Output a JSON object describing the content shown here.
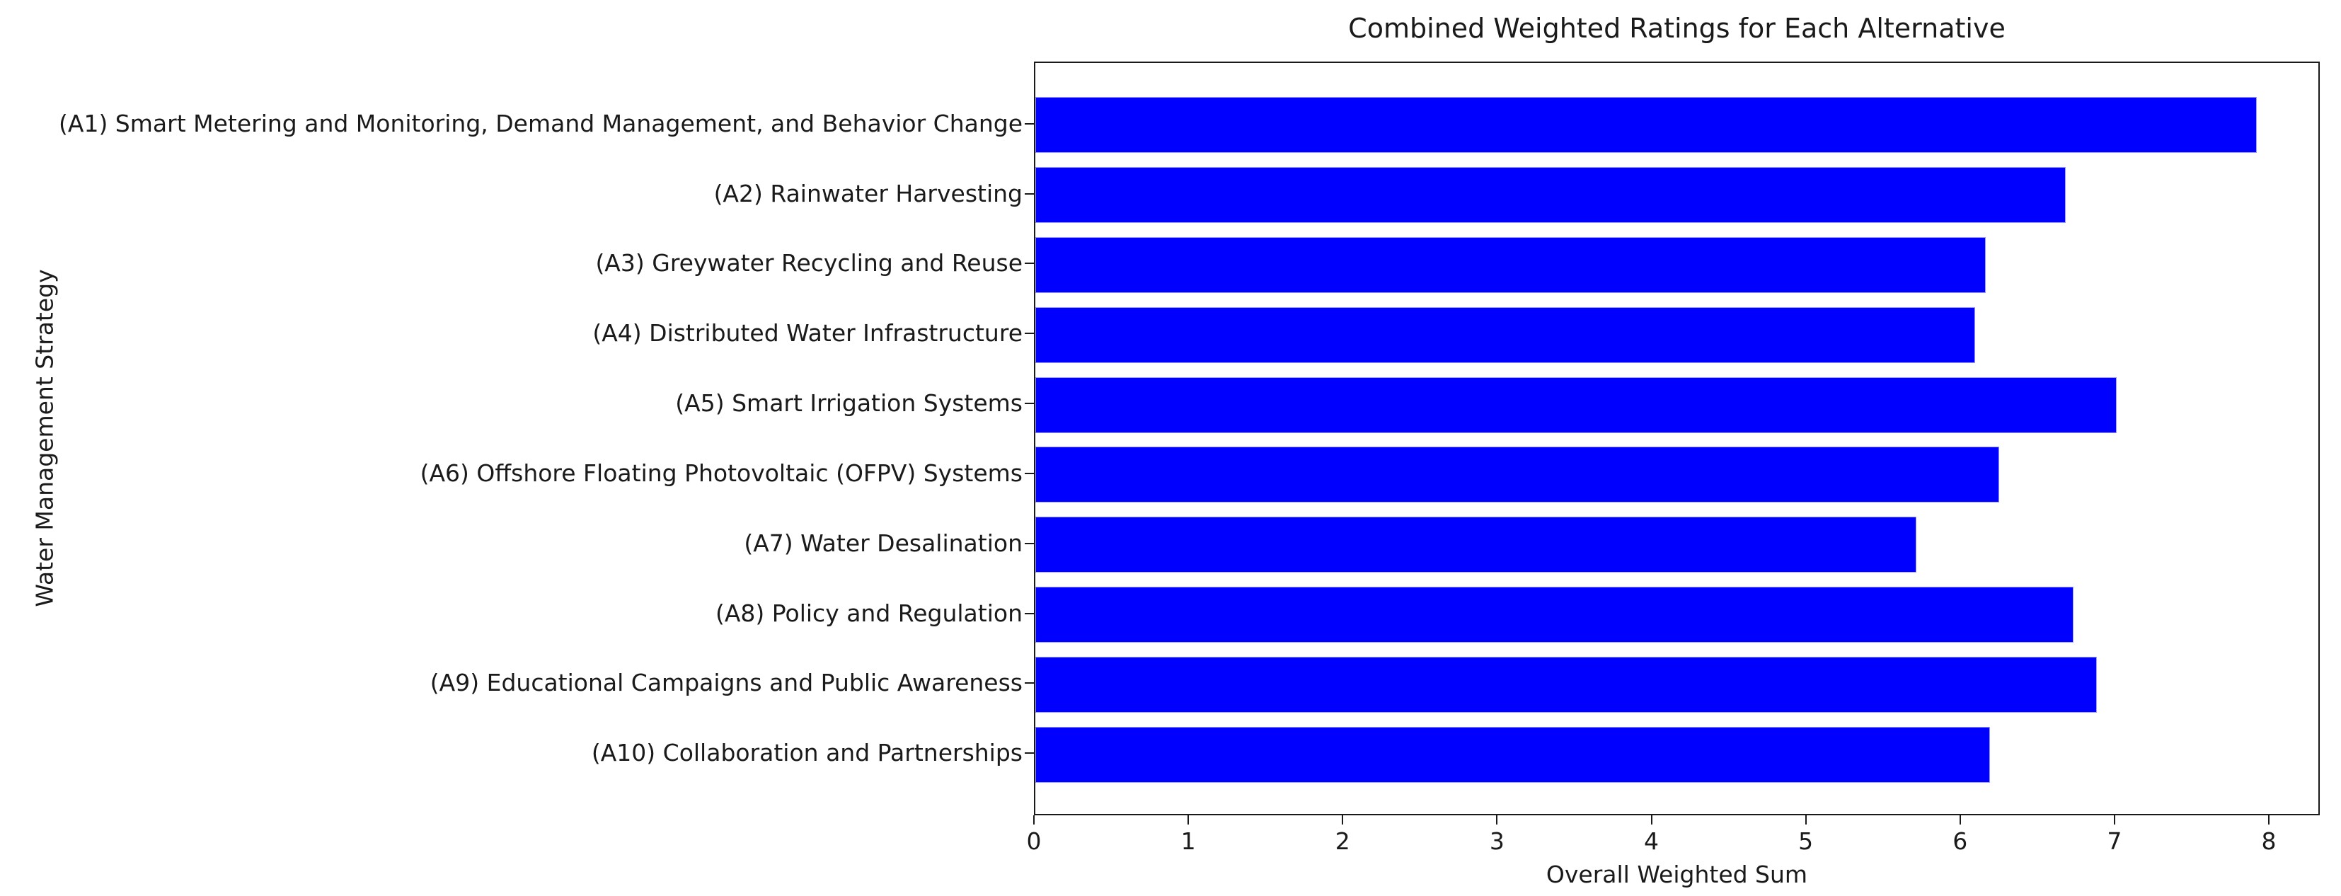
{
  "chart_data": {
    "type": "bar",
    "orientation": "horizontal",
    "title": "Combined Weighted Ratings for Each Alternative",
    "xlabel": "Overall Weighted Sum",
    "ylabel": "Water Management Strategy",
    "categories": [
      "(A1) Smart Metering and Monitoring, Demand Management, and Behavior Change",
      "(A2) Rainwater Harvesting",
      "(A3) Greywater Recycling and Reuse",
      "(A4) Distributed Water Infrastructure",
      "(A5) Smart Irrigation Systems",
      "(A6) Offshore Floating Photovoltaic (OFPV) Systems",
      "(A7) Water Desalination",
      "(A8) Policy and Regulation",
      "(A9) Educational Campaigns and Public Awareness",
      "(A10) Collaboration and Partnerships"
    ],
    "values": [
      7.93,
      6.69,
      6.17,
      6.1,
      7.02,
      6.26,
      5.72,
      6.74,
      6.89,
      6.2
    ],
    "xlim": [
      0,
      8.33
    ],
    "xticks": [
      0,
      1,
      2,
      3,
      4,
      5,
      6,
      7,
      8
    ],
    "bar_color": "#0000ff",
    "grid": false,
    "legend": null
  }
}
